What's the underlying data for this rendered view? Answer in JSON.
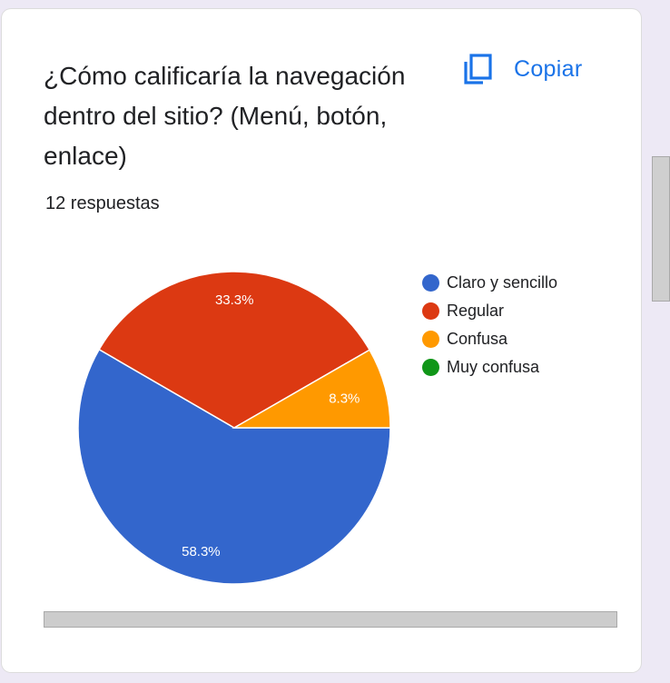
{
  "card": {
    "question": "¿Cómo calificaría la navegación dentro del sitio? (Menú, botón, enlace)",
    "copy_label": "Copiar",
    "copy_icon": "copy-icon",
    "response_count": "12 respuestas"
  },
  "chart_data": {
    "type": "pie",
    "categories": [
      "Claro y sencillo",
      "Regular",
      "Confusa",
      "Muy confusa"
    ],
    "values": [
      58.3,
      33.3,
      8.3,
      0
    ],
    "labels": [
      "58.3%",
      "33.3%",
      "8.3%",
      ""
    ],
    "colors": [
      "#3366cc",
      "#dc3912",
      "#ff9900",
      "#109618"
    ],
    "legend_position": "right"
  }
}
